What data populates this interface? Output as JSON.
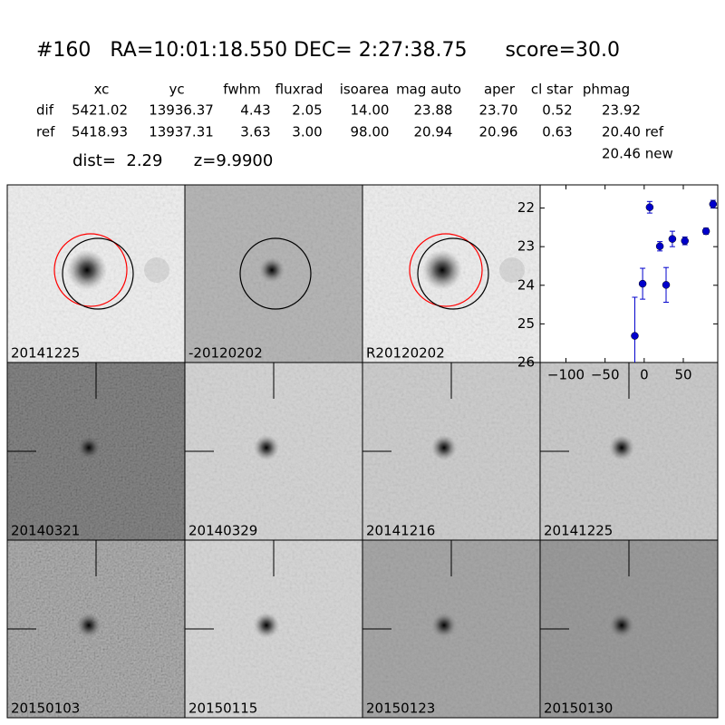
{
  "header": {
    "title": "#160   RA=10:01:18.550 DEC= 2:27:38.75      score=30.0",
    "dist": "dist=  2.29      z=9.9900"
  },
  "table": {
    "columns": [
      "xc",
      "yc",
      "fwhm",
      "fluxrad",
      "isoarea",
      "mag auto",
      "aper",
      "cl star",
      "phmag"
    ],
    "rows": [
      [
        "dif",
        "5421.02",
        "13936.37",
        "4.43",
        "2.05",
        "14.00",
        "23.88",
        "23.70",
        "0.52",
        "23.92"
      ],
      [
        "ref",
        "5418.93",
        "13937.31",
        "3.63",
        "3.00",
        "98.00",
        "20.94",
        "20.96",
        "0.63",
        "20.40 ref"
      ]
    ],
    "phmag_new": "20.46 new"
  },
  "panels": [
    {
      "label": "20141225"
    },
    {
      "label": "-20120202"
    },
    {
      "label": "R20120202"
    },
    {
      "label": "20140321"
    },
    {
      "label": "20140329"
    },
    {
      "label": "20141216"
    },
    {
      "label": "20141225",
      "label_color": "#ff0000"
    },
    {
      "label": "20150103"
    },
    {
      "label": "20150115"
    },
    {
      "label": "20150123"
    },
    {
      "label": "20150130"
    }
  ],
  "light_curve": {
    "type": "scatter",
    "color": "#0000cc",
    "x": [
      -12,
      -2,
      7,
      20,
      28,
      36,
      52,
      79,
      88
    ],
    "values": [
      25.31,
      23.96,
      21.98,
      22.99,
      23.99,
      22.8,
      22.85,
      22.6,
      21.9
    ],
    "errors": [
      1.0,
      0.4,
      0.15,
      0.12,
      0.45,
      0.2,
      0.1,
      0.08,
      0.1
    ],
    "xlim": [
      -133,
      94
    ],
    "ylim": [
      26,
      21.4
    ],
    "xticks": [
      {
        "value": -100,
        "label": "−100"
      },
      {
        "value": -50,
        "label": "−50"
      },
      0,
      50
    ],
    "yticks": [
      22,
      23,
      24,
      25,
      26
    ]
  }
}
